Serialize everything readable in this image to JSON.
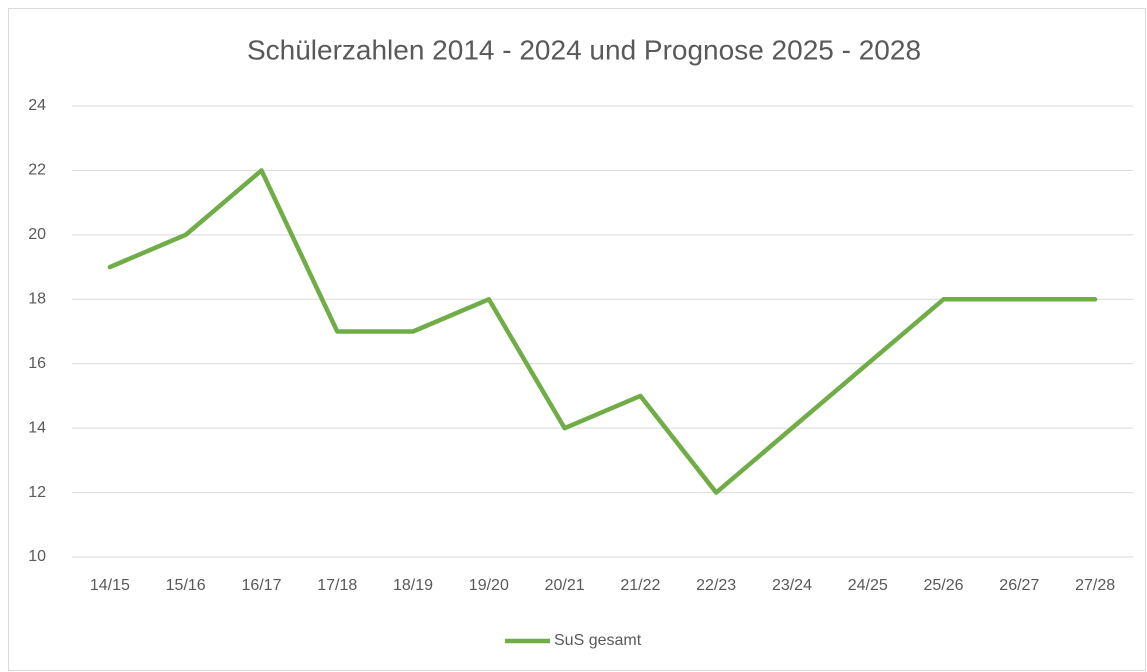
{
  "chart_data": {
    "type": "line",
    "title": "Schülerzahlen 2014 - 2024 und Prognose 2025 - 2028",
    "categories": [
      "14/15",
      "15/16",
      "16/17",
      "17/18",
      "18/19",
      "19/20",
      "20/21",
      "21/22",
      "22/23",
      "23/24",
      "24/25",
      "25/26",
      "26/27",
      "27/28"
    ],
    "series": [
      {
        "name": "SuS gesamt",
        "color": "#70ad47",
        "values": [
          19,
          20,
          22,
          17,
          17,
          18,
          14,
          15,
          12,
          14,
          16,
          18,
          18,
          18
        ]
      }
    ],
    "ylim": [
      10,
      24
    ],
    "yticks": [
      10,
      12,
      14,
      16,
      18,
      20,
      22,
      24
    ],
    "grid": true,
    "legend": "bottom"
  }
}
